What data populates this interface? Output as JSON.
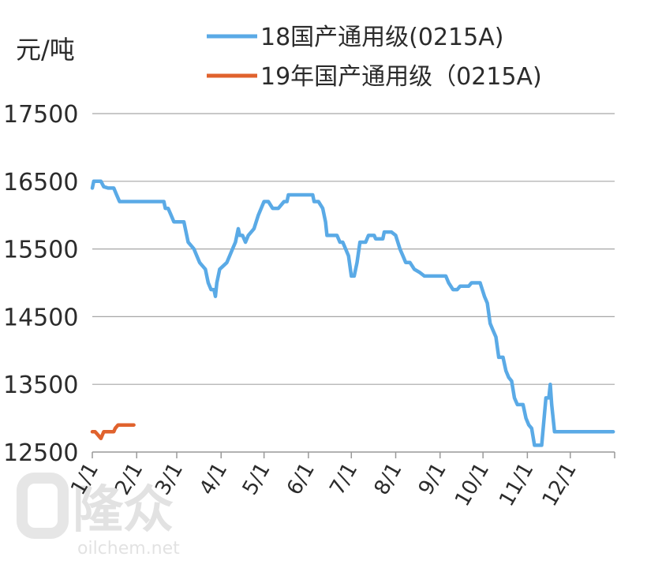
{
  "chart_data": {
    "type": "line",
    "unit_label": "元/吨",
    "y_ticks": [
      "17500",
      "16500",
      "15500",
      "14500",
      "13500",
      "12500"
    ],
    "ylim": [
      12500,
      17500
    ],
    "x_ticks": [
      "1/1",
      "2/1",
      "3/1",
      "4/1",
      "5/1",
      "6/1",
      "7/1",
      "8/1",
      "9/1",
      "10/1",
      "11/1",
      "12/1"
    ],
    "grid": true,
    "legend_position": "top",
    "series": [
      {
        "name": "18国产通用级(0215A)",
        "color": "#5aaae6",
        "points": [
          [
            1,
            16400
          ],
          [
            2,
            16500
          ],
          [
            5,
            16500
          ],
          [
            7,
            16500
          ],
          [
            9,
            16420
          ],
          [
            12,
            16400
          ],
          [
            16,
            16400
          ],
          [
            18,
            16300
          ],
          [
            20,
            16200
          ],
          [
            25,
            16200
          ],
          [
            35,
            16200
          ],
          [
            45,
            16200
          ],
          [
            51,
            16200
          ],
          [
            52,
            16100
          ],
          [
            54,
            16100
          ],
          [
            56,
            16000
          ],
          [
            58,
            15900
          ],
          [
            65,
            15900
          ],
          [
            66,
            15800
          ],
          [
            68,
            15600
          ],
          [
            72,
            15500
          ],
          [
            74,
            15400
          ],
          [
            76,
            15300
          ],
          [
            80,
            15200
          ],
          [
            82,
            15000
          ],
          [
            84,
            14900
          ],
          [
            86,
            14900
          ],
          [
            87,
            14800
          ],
          [
            88,
            15000
          ],
          [
            90,
            15200
          ],
          [
            95,
            15300
          ],
          [
            97,
            15400
          ],
          [
            99,
            15500
          ],
          [
            101,
            15600
          ],
          [
            103,
            15800
          ],
          [
            104,
            15700
          ],
          [
            106,
            15700
          ],
          [
            108,
            15600
          ],
          [
            110,
            15700
          ],
          [
            114,
            15800
          ],
          [
            117,
            16000
          ],
          [
            119,
            16100
          ],
          [
            121,
            16200
          ],
          [
            124,
            16200
          ],
          [
            127,
            16100
          ],
          [
            131,
            16100
          ],
          [
            135,
            16200
          ],
          [
            137,
            16200
          ],
          [
            138,
            16300
          ],
          [
            140,
            16300
          ],
          [
            145,
            16300
          ],
          [
            155,
            16300
          ],
          [
            156,
            16200
          ],
          [
            159,
            16200
          ],
          [
            162,
            16100
          ],
          [
            164,
            15900
          ],
          [
            165,
            15700
          ],
          [
            172,
            15700
          ],
          [
            174,
            15600
          ],
          [
            176,
            15600
          ],
          [
            180,
            15400
          ],
          [
            182,
            15100
          ],
          [
            184,
            15100
          ],
          [
            186,
            15300
          ],
          [
            188,
            15600
          ],
          [
            192,
            15600
          ],
          [
            194,
            15700
          ],
          [
            198,
            15700
          ],
          [
            199,
            15650
          ],
          [
            204,
            15650
          ],
          [
            205,
            15750
          ],
          [
            210,
            15750
          ],
          [
            213,
            15700
          ],
          [
            216,
            15500
          ],
          [
            218,
            15400
          ],
          [
            220,
            15300
          ],
          [
            223,
            15300
          ],
          [
            226,
            15200
          ],
          [
            230,
            15150
          ],
          [
            233,
            15100
          ],
          [
            240,
            15100
          ],
          [
            248,
            15100
          ],
          [
            250,
            15000
          ],
          [
            253,
            14900
          ],
          [
            256,
            14900
          ],
          [
            258,
            14950
          ],
          [
            264,
            14950
          ],
          [
            266,
            15000
          ],
          [
            272,
            15000
          ],
          [
            275,
            14800
          ],
          [
            277,
            14700
          ],
          [
            279,
            14400
          ],
          [
            281,
            14300
          ],
          [
            283,
            14200
          ],
          [
            285,
            13900
          ],
          [
            288,
            13900
          ],
          [
            290,
            13700
          ],
          [
            292,
            13600
          ],
          [
            294,
            13550
          ],
          [
            296,
            13300
          ],
          [
            298,
            13200
          ],
          [
            302,
            13200
          ],
          [
            304,
            13000
          ],
          [
            306,
            12900
          ],
          [
            308,
            12850
          ],
          [
            310,
            12600
          ],
          [
            315,
            12600
          ],
          [
            318,
            13300
          ],
          [
            320,
            13300
          ],
          [
            321,
            13500
          ],
          [
            322,
            13200
          ],
          [
            324,
            12800
          ],
          [
            327,
            12800
          ],
          [
            340,
            12800
          ],
          [
            350,
            12800
          ],
          [
            360,
            12800
          ],
          [
            365,
            12800
          ]
        ]
      },
      {
        "name": "19年国产通用级（0215A)",
        "color": "#e0622d",
        "points": [
          [
            1,
            12800
          ],
          [
            3,
            12800
          ],
          [
            5,
            12750
          ],
          [
            7,
            12700
          ],
          [
            9,
            12800
          ],
          [
            12,
            12800
          ],
          [
            16,
            12800
          ],
          [
            17,
            12850
          ],
          [
            19,
            12900
          ],
          [
            22,
            12900
          ],
          [
            30,
            12900
          ]
        ]
      }
    ]
  },
  "watermark": {
    "brand": "隆众",
    "site": "oilchem.net"
  }
}
